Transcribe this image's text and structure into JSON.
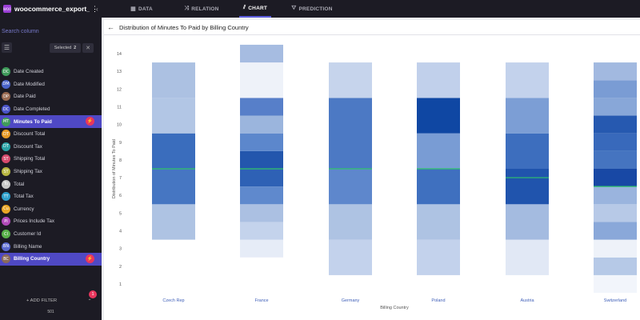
{
  "app": {
    "title": "woocommerce_export_e...",
    "icon_text": "WOO",
    "icon_color": "#9b3fd6"
  },
  "search": {
    "placeholder": "Search column"
  },
  "toolbar": {
    "selected_label": "Selected",
    "selected_count": "2"
  },
  "columns": [
    {
      "abbr": "DC",
      "label": "Date Created",
      "color": "#3f9b5a",
      "active": false
    },
    {
      "abbr": "DM",
      "label": "Date Modified",
      "color": "#4a63c9",
      "active": false
    },
    {
      "abbr": "DP",
      "label": "Date Paid",
      "color": "#9a6a52",
      "active": false
    },
    {
      "abbr": "DC",
      "label": "Date Completed",
      "color": "#4a54c8",
      "active": false
    },
    {
      "abbr": "MT",
      "label": "Minutes To Paid",
      "color": "#3f9b5a",
      "active": true
    },
    {
      "abbr": "DT",
      "label": "Discount Total",
      "color": "#e89a26",
      "active": false
    },
    {
      "abbr": "DT",
      "label": "Discount Tax",
      "color": "#2aa3a6",
      "active": false
    },
    {
      "abbr": "ST",
      "label": "Shipping Total",
      "color": "#d64a6c",
      "active": false
    },
    {
      "abbr": "ST",
      "label": "Shipping Tax",
      "color": "#b8b642",
      "active": false
    },
    {
      "abbr": "To",
      "label": "Total",
      "color": "#c9c9c9",
      "active": false
    },
    {
      "abbr": "TT",
      "label": "Total Tax",
      "color": "#2ea0cc",
      "active": false
    },
    {
      "abbr": "Cu",
      "label": "Currency",
      "color": "#e8a626",
      "active": false
    },
    {
      "abbr": "PI",
      "label": "Prices Include Tax",
      "color": "#b04ab8",
      "active": false
    },
    {
      "abbr": "CI",
      "label": "Customer Id",
      "color": "#58b04a",
      "active": false
    },
    {
      "abbr": "BN",
      "label": "Billing Name",
      "color": "#5a6ad0",
      "active": false
    },
    {
      "abbr": "BC",
      "label": "Billing Country",
      "color": "#8a6a5a",
      "active": true
    }
  ],
  "footer": {
    "add_filter": "+ ADD FILTER",
    "notification_count": "1",
    "row_count": "501"
  },
  "tabs": [
    {
      "label": "DATA",
      "icon": "table-icon",
      "glyph": "▦",
      "active": false
    },
    {
      "label": "RELATION",
      "icon": "shuffle-icon",
      "glyph": "⤨",
      "active": false
    },
    {
      "label": "CHART",
      "icon": "chart-icon",
      "glyph": "⫽",
      "active": true
    },
    {
      "label": "PREDICTION",
      "icon": "prediction-icon",
      "glyph": "⛛",
      "active": false
    }
  ],
  "chart_data": {
    "type": "heatmap",
    "title": "Distribution of Minutes To Paid by Billing Country",
    "xlabel": "Billing Country",
    "ylabel": "Distribution of Minutes To Paid",
    "ylim": [
      0.5,
      14.5
    ],
    "yticks": [
      1,
      2,
      3,
      4,
      5,
      6,
      7,
      8,
      9,
      10,
      11,
      12,
      13,
      14
    ],
    "categories": [
      "Czech Rep",
      "France",
      "Germany",
      "Poland",
      "Austria",
      "Switzerland"
    ],
    "series": [
      {
        "name": "Czech Rep",
        "median": 7.5,
        "bins": [
          {
            "low": 3.5,
            "high": 5.5,
            "color": "#aec3e3"
          },
          {
            "low": 5.5,
            "high": 7.5,
            "color": "#4676c2"
          },
          {
            "low": 7.5,
            "high": 9.5,
            "color": "#3a6dbd"
          },
          {
            "low": 9.5,
            "high": 11.5,
            "color": "#b2c6e5"
          },
          {
            "low": 11.5,
            "high": 13.5,
            "color": "#acc1e2"
          }
        ]
      },
      {
        "name": "France",
        "median": 7.5,
        "bins": [
          {
            "low": 2.5,
            "high": 3.5,
            "color": "#e6ecf7"
          },
          {
            "low": 3.5,
            "high": 4.5,
            "color": "#c4d3ec"
          },
          {
            "low": 4.5,
            "high": 5.5,
            "color": "#abc0e2"
          },
          {
            "low": 5.5,
            "high": 6.5,
            "color": "#5f89cd"
          },
          {
            "low": 6.5,
            "high": 7.5,
            "color": "#2e61b5"
          },
          {
            "low": 7.5,
            "high": 8.5,
            "color": "#2356ad"
          },
          {
            "low": 8.5,
            "high": 9.5,
            "color": "#5c87cc"
          },
          {
            "low": 9.5,
            "high": 10.5,
            "color": "#9bb5dd"
          },
          {
            "low": 10.5,
            "high": 11.5,
            "color": "#577fc9"
          },
          {
            "low": 11.5,
            "high": 13.5,
            "color": "#eef2f9"
          },
          {
            "low": 13.5,
            "high": 14.5,
            "color": "#a6bce1"
          }
        ]
      },
      {
        "name": "Germany",
        "median": 7.5,
        "bins": [
          {
            "low": 1.5,
            "high": 3.5,
            "color": "#c3d2ec"
          },
          {
            "low": 3.5,
            "high": 5.5,
            "color": "#aec3e3"
          },
          {
            "low": 5.5,
            "high": 7.5,
            "color": "#5e87cc"
          },
          {
            "low": 7.5,
            "high": 11.5,
            "color": "#4c79c4"
          },
          {
            "low": 11.5,
            "high": 13.5,
            "color": "#c6d4ec"
          }
        ]
      },
      {
        "name": "Poland",
        "median": 7.5,
        "bins": [
          {
            "low": 1.5,
            "high": 3.5,
            "color": "#c3d2ec"
          },
          {
            "low": 3.5,
            "high": 5.5,
            "color": "#aec3e3"
          },
          {
            "low": 5.5,
            "high": 7.5,
            "color": "#3f70bf"
          },
          {
            "low": 7.5,
            "high": 9.5,
            "color": "#799cd4"
          },
          {
            "low": 9.5,
            "high": 11.5,
            "color": "#0f47a3"
          },
          {
            "low": 11.5,
            "high": 13.5,
            "color": "#c1d0eb"
          }
        ]
      },
      {
        "name": "Austria",
        "median": 7.0,
        "bins": [
          {
            "low": 1.5,
            "high": 3.5,
            "color": "#e1e8f5"
          },
          {
            "low": 3.5,
            "high": 5.5,
            "color": "#a4bbe0"
          },
          {
            "low": 5.5,
            "high": 7.5,
            "color": "#2054ad"
          },
          {
            "low": 7.5,
            "high": 9.5,
            "color": "#3d6ebe"
          },
          {
            "low": 9.5,
            "high": 11.5,
            "color": "#7c9ed5"
          },
          {
            "low": 11.5,
            "high": 13.5,
            "color": "#c3d2ec"
          }
        ]
      },
      {
        "name": "Switzerland",
        "median": 6.5,
        "bins": [
          {
            "low": 0.5,
            "high": 1.5,
            "color": "#f2f5fb"
          },
          {
            "low": 1.5,
            "high": 2.5,
            "color": "#b6c9e7"
          },
          {
            "low": 2.5,
            "high": 3.5,
            "color": "#eef2f9"
          },
          {
            "low": 3.5,
            "high": 4.5,
            "color": "#8aa8d9"
          },
          {
            "low": 4.5,
            "high": 5.5,
            "color": "#b7c9e7"
          },
          {
            "low": 5.5,
            "high": 6.5,
            "color": "#9ab4de"
          },
          {
            "low": 6.5,
            "high": 7.5,
            "color": "#1848a5"
          },
          {
            "low": 7.5,
            "high": 8.5,
            "color": "#4574c0"
          },
          {
            "low": 8.5,
            "high": 9.5,
            "color": "#3869bb"
          },
          {
            "low": 9.5,
            "high": 10.5,
            "color": "#2659b0"
          },
          {
            "low": 10.5,
            "high": 11.5,
            "color": "#88a7d8"
          },
          {
            "low": 11.5,
            "high": 12.5,
            "color": "#7a9cd4"
          },
          {
            "low": 12.5,
            "high": 13.5,
            "color": "#a2b9e0"
          }
        ]
      }
    ],
    "median_color": "#2fc46a",
    "tick_label_color": "#3f5fb8"
  }
}
